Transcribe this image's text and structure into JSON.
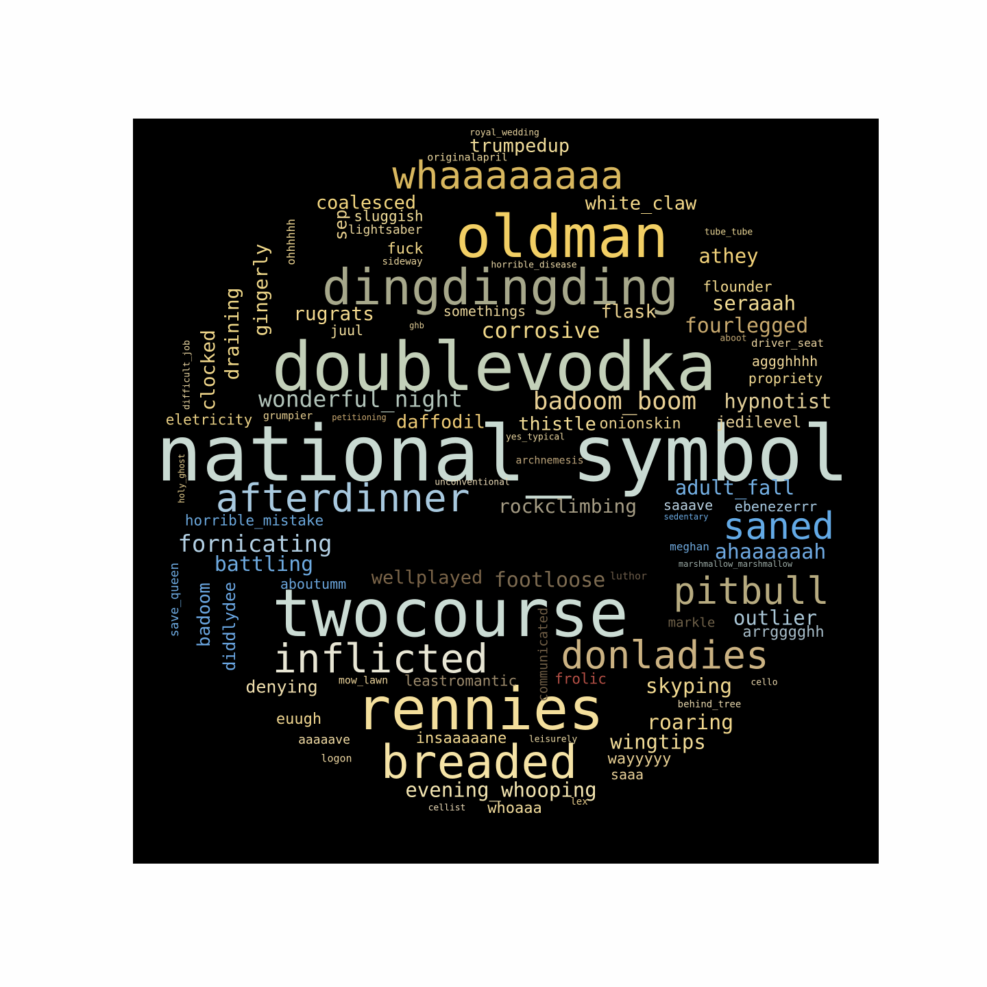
{
  "colors": {
    "background": "#000000",
    "page": "#fefefe"
  },
  "words": [
    {
      "text": "national_symbol",
      "color": "#c9dad2"
    },
    {
      "text": "doublevodka",
      "color": "#c3d0b9"
    },
    {
      "text": "twocourse",
      "color": "#cbdcd4"
    },
    {
      "text": "oldman",
      "color": "#f2cf64"
    },
    {
      "text": "rennies",
      "color": "#f4df9c"
    },
    {
      "text": "dingdingding",
      "color": "#a7a88b"
    },
    {
      "text": "breaded",
      "color": "#f5e3a6"
    },
    {
      "text": "whaaaaaaaa",
      "color": "#d8b75e"
    },
    {
      "text": "afterdinner",
      "color": "#a8c9df"
    },
    {
      "text": "donladies",
      "color": "#cbb282"
    },
    {
      "text": "inflicted",
      "color": "#e8e6d4"
    },
    {
      "text": "pitbull",
      "color": "#b7ab80"
    },
    {
      "text": "saned",
      "color": "#63aae6"
    },
    {
      "text": "badoom_boom",
      "color": "#e7cf94"
    },
    {
      "text": "wonderful_night",
      "color": "#b1c3b9"
    },
    {
      "text": "corrosive",
      "color": "#f0d88a"
    },
    {
      "text": "trumpedup",
      "color": "#f0dc99"
    },
    {
      "text": "coalesced",
      "color": "#f2d680"
    },
    {
      "text": "white_claw",
      "color": "#f4d98a"
    },
    {
      "text": "athey",
      "color": "#f2d27a"
    },
    {
      "text": "seraaah",
      "color": "#f2dc94"
    },
    {
      "text": "fourlegged",
      "color": "#c8a96e"
    },
    {
      "text": "hypnotist",
      "color": "#e2cf99"
    },
    {
      "text": "rugrats",
      "color": "#f2d88e"
    },
    {
      "text": "flask",
      "color": "#e7cf8e"
    },
    {
      "text": "daffodil",
      "color": "#ecc975"
    },
    {
      "text": "thistle",
      "color": "#f2dc96"
    },
    {
      "text": "onionskin",
      "color": "#e4cc8c"
    },
    {
      "text": "jedilevel",
      "color": "#e4cf98"
    },
    {
      "text": "rockclimbing",
      "color": "#a59c84"
    },
    {
      "text": "adult_fall",
      "color": "#74b0e4"
    },
    {
      "text": "fornicating",
      "color": "#b3d0e4"
    },
    {
      "text": "battling",
      "color": "#6eaae0"
    },
    {
      "text": "ahaaaaaah",
      "color": "#6ea8e0"
    },
    {
      "text": "wellplayed",
      "color": "#7a6448"
    },
    {
      "text": "footloose",
      "color": "#7c6a50"
    },
    {
      "text": "outlier",
      "color": "#a9c6d6"
    },
    {
      "text": "arrgggghh",
      "color": "#a6bcc8"
    },
    {
      "text": "skyping",
      "color": "#f0d890"
    },
    {
      "text": "roaring",
      "color": "#f2d88e"
    },
    {
      "text": "wingtips",
      "color": "#f2dc98"
    },
    {
      "text": "evening_whooping",
      "color": "#f2e4b0"
    },
    {
      "text": "denying",
      "color": "#f0dfae"
    },
    {
      "text": "leastromantic",
      "color": "#9c8a6c"
    },
    {
      "text": "frolic",
      "color": "#b34f45"
    },
    {
      "text": "euugh",
      "color": "#f0d690"
    },
    {
      "text": "insaaaaane",
      "color": "#f2d890"
    },
    {
      "text": "wayyyyy",
      "color": "#e8d094"
    },
    {
      "text": "whoaaa",
      "color": "#f2dc9c"
    },
    {
      "text": "saaa",
      "color": "#e8d098"
    },
    {
      "text": "aaaaave",
      "color": "#f2dca4"
    },
    {
      "text": "fuck",
      "color": "#f0d688"
    },
    {
      "text": "sluggish",
      "color": "#f0dc98"
    },
    {
      "text": "lightsaber",
      "color": "#e8d49a"
    },
    {
      "text": "somethings",
      "color": "#e8d49a"
    },
    {
      "text": "flounder",
      "color": "#f0d88e"
    },
    {
      "text": "aggghhhh",
      "color": "#f0d89a"
    },
    {
      "text": "propriety",
      "color": "#f0d890"
    },
    {
      "text": "juul",
      "color": "#f0dc9c"
    },
    {
      "text": "eletricity",
      "color": "#e8cf84"
    },
    {
      "text": "grumpier",
      "color": "#e8d092"
    },
    {
      "text": "horrible_mistake",
      "color": "#6aa6da"
    },
    {
      "text": "aboutumm",
      "color": "#6aa4da"
    },
    {
      "text": "saaave",
      "color": "#b8d0e0"
    },
    {
      "text": "ebenezerrr",
      "color": "#a6c8e0"
    },
    {
      "text": "meghan",
      "color": "#6ea8dc"
    },
    {
      "text": "markle",
      "color": "#6e6048"
    },
    {
      "text": "originalapril",
      "color": "#e8d49c"
    },
    {
      "text": "royal_wedding",
      "color": "#e4d09c"
    },
    {
      "text": "sideway",
      "color": "#e4d09a"
    },
    {
      "text": "horrible_disease",
      "color": "#e8d6a6"
    },
    {
      "text": "tube_tube",
      "color": "#e8d494"
    },
    {
      "text": "ghb",
      "color": "#e0cc96"
    },
    {
      "text": "aboot",
      "color": "#c2a874"
    },
    {
      "text": "driver_seat",
      "color": "#e8d2a0"
    },
    {
      "text": "petitioning",
      "color": "#c8a870"
    },
    {
      "text": "yes_typical",
      "color": "#e8d49e"
    },
    {
      "text": "archnemesis",
      "color": "#bca47a"
    },
    {
      "text": "unconventional",
      "color": "#e8d8b4"
    },
    {
      "text": "sedentary",
      "color": "#6aa8e0"
    },
    {
      "text": "marshmallow_marshmallow",
      "color": "#9aa9a4"
    },
    {
      "text": "luthor",
      "color": "#6a5a48"
    },
    {
      "text": "mow_lawn",
      "color": "#e8d098"
    },
    {
      "text": "cello",
      "color": "#e4d2a8"
    },
    {
      "text": "behind_tree",
      "color": "#e4d4aa"
    },
    {
      "text": "leisurely",
      "color": "#e8d6a2"
    },
    {
      "text": "logon",
      "color": "#e8d29e"
    },
    {
      "text": "cellist",
      "color": "#e8d8b4"
    },
    {
      "text": "lex",
      "color": "#e2c888"
    },
    {
      "text": "sep",
      "color": "#e8d08e"
    },
    {
      "text": "ohhhhhh",
      "color": "#e8d08e"
    },
    {
      "text": "gingerly",
      "color": "#f0d88a"
    },
    {
      "text": "draining",
      "color": "#f0d888"
    },
    {
      "text": "clocked",
      "color": "#f0d68a"
    },
    {
      "text": "difficult_job",
      "color": "#e8d4a0"
    },
    {
      "text": "holy_ghost",
      "color": "#e8d090"
    },
    {
      "text": "save_queen",
      "color": "#6ca8de"
    },
    {
      "text": "badoom",
      "color": "#6aa6e0"
    },
    {
      "text": "diddlydee",
      "color": "#6aa6e2"
    },
    {
      "text": "communicated",
      "color": "#6e5c44"
    }
  ]
}
